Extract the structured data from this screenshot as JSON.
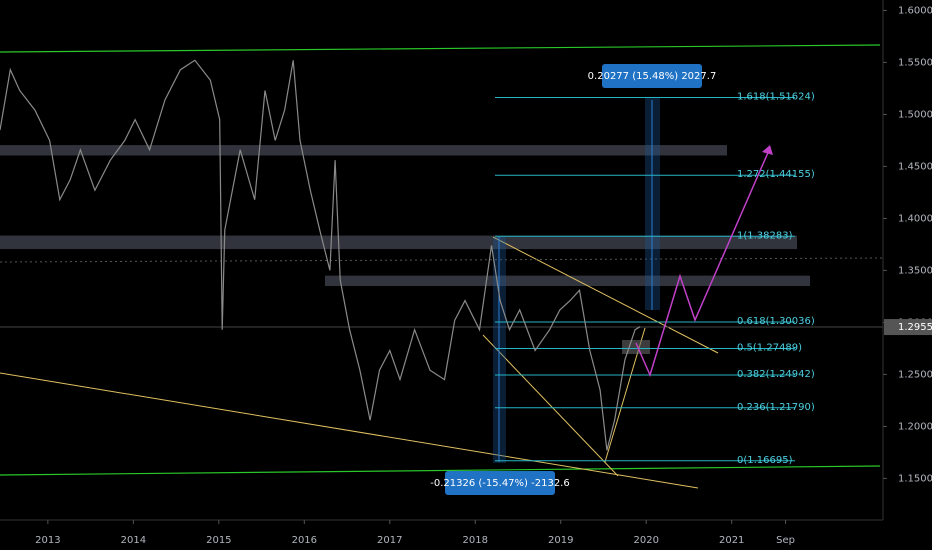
{
  "chart_data": {
    "type": "line",
    "color": "#8a8a8a",
    "x": [
      2012.44,
      2012.56,
      2012.67,
      2012.85,
      2013.02,
      2013.14,
      2013.26,
      2013.38,
      2013.55,
      2013.73,
      2013.9,
      2014.02,
      2014.19,
      2014.37,
      2014.55,
      2014.72,
      2014.9,
      2015.01,
      2015.04,
      2015.07,
      2015.25,
      2015.42,
      2015.54,
      2015.66,
      2015.77,
      2015.87,
      2015.95,
      2016.07,
      2016.18,
      2016.3,
      2016.36,
      2016.42,
      2016.53,
      2016.65,
      2016.77,
      2016.88,
      2017.0,
      2017.12,
      2017.29,
      2017.47,
      2017.64,
      2017.76,
      2017.88,
      2018.05,
      2018.19,
      2018.29,
      2018.4,
      2018.52,
      2018.7,
      2018.87,
      2018.99,
      2019.11,
      2019.22,
      2019.34,
      2019.46,
      2019.54,
      2019.63,
      2019.75,
      2019.87,
      2019.93
    ],
    "values": [
      1.485,
      1.543,
      1.523,
      1.504,
      1.475,
      1.418,
      1.437,
      1.466,
      1.427,
      1.456,
      1.475,
      1.495,
      1.466,
      1.514,
      1.543,
      1.552,
      1.533,
      1.495,
      1.293,
      1.389,
      1.466,
      1.418,
      1.523,
      1.475,
      1.504,
      1.552,
      1.475,
      1.427,
      1.389,
      1.35,
      1.456,
      1.341,
      1.293,
      1.254,
      1.206,
      1.254,
      1.273,
      1.245,
      1.293,
      1.254,
      1.245,
      1.302,
      1.321,
      1.293,
      1.374,
      1.321,
      1.293,
      1.312,
      1.273,
      1.293,
      1.312,
      1.321,
      1.331,
      1.273,
      1.235,
      1.177,
      1.206,
      1.264,
      1.293,
      1.296
    ],
    "xlim": [
      2012.44,
      2022.77
    ],
    "ylim": [
      1.11,
      1.61
    ],
    "xticks": [
      2013,
      2014,
      2015,
      2016,
      2017,
      2018,
      2019,
      2020,
      2021,
      {
        "value": 2021.63,
        "label": "Sep"
      }
    ],
    "yticks": [
      {
        "value": 1.15,
        "label": "1.15000"
      },
      {
        "value": 1.2,
        "label": "1.20000"
      },
      {
        "value": 1.25,
        "label": "1.25000"
      },
      {
        "value": 1.3,
        "label": "1.30000"
      },
      {
        "value": 1.35,
        "label": "1.35000"
      },
      {
        "value": 1.4,
        "label": "1.40000"
      },
      {
        "value": 1.45,
        "label": "1.45000"
      },
      {
        "value": 1.5,
        "label": "1.50000"
      },
      {
        "value": 1.55,
        "label": "1.55000"
      },
      {
        "value": 1.6,
        "label": "1.60000"
      }
    ],
    "last_price": {
      "value": 1.29552,
      "label": "1.29552"
    },
    "zones": [
      {
        "low": 1.4605,
        "high": 1.4705
      },
      {
        "low": 1.3705,
        "high": 1.3835
      },
      {
        "low": 1.335,
        "high": 1.345
      }
    ],
    "fib_levels": [
      {
        "value": 1.51624,
        "label": "1.618(1.51624)"
      },
      {
        "value": 1.44155,
        "label": "1.272(1.44155)"
      },
      {
        "value": 1.38283,
        "label": "1(1.38283)"
      },
      {
        "value": 1.30036,
        "label": "0.618(1.30036)"
      },
      {
        "value": 1.27489,
        "label": "0.5(1.27489)"
      },
      {
        "value": 1.24942,
        "label": "0.382(1.24942)"
      },
      {
        "value": 1.2179,
        "label": "0.236(1.21790)"
      },
      {
        "value": 1.16695,
        "label": "0(1.16695)"
      }
    ],
    "annotations": [
      "0.20277 (15.48%) 2027.7",
      "-0.21326 (-15.47%) -2132.6"
    ]
  }
}
